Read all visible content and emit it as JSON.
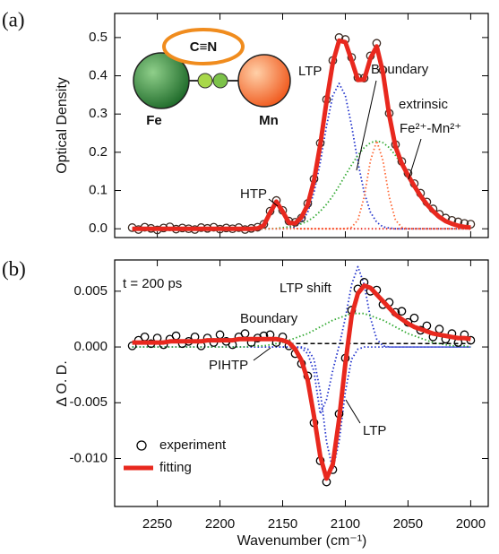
{
  "chart_data": [
    {
      "type": "line",
      "panel_label": "(a)",
      "ylabel": "Optical Density",
      "inset": {
        "bridge": "C≡N",
        "left": "Fe",
        "right": "Mn"
      },
      "xlim": [
        2284,
        1986
      ],
      "xticks": [
        2250,
        2200,
        2150,
        2100,
        2050,
        2000
      ],
      "xtick_labels": false,
      "ylim": [
        -0.023,
        0.563
      ],
      "yticks": [
        {
          "value": 0,
          "label": "0.0"
        },
        {
          "value": 0.1,
          "label": "0.1"
        },
        {
          "value": 0.2,
          "label": "0.2"
        },
        {
          "value": 0.3,
          "label": "0.3"
        },
        {
          "value": 0.4,
          "label": "0.4"
        },
        {
          "value": 0.5,
          "label": "0.5"
        }
      ],
      "x": [
        2270,
        2265,
        2260,
        2255,
        2250,
        2245,
        2240,
        2235,
        2230,
        2225,
        2220,
        2215,
        2210,
        2205,
        2200,
        2195,
        2190,
        2185,
        2180,
        2175,
        2170,
        2165,
        2160,
        2155,
        2150,
        2145,
        2140,
        2135,
        2130,
        2125,
        2120,
        2115,
        2110,
        2105,
        2100,
        2095,
        2090,
        2085,
        2080,
        2075,
        2070,
        2065,
        2060,
        2055,
        2050,
        2045,
        2040,
        2035,
        2030,
        2025,
        2020,
        2015,
        2010,
        2005,
        2000
      ],
      "series": [
        {
          "name": "HTP",
          "style": "dotted",
          "color": "#e8281e",
          "values": [
            0,
            0,
            0,
            0,
            0,
            0,
            0,
            0,
            0,
            0,
            0,
            0,
            0,
            0,
            0,
            0,
            0,
            0,
            0,
            0,
            0.001,
            0.009,
            0.042,
            0.07,
            0.042,
            0.009,
            0.001,
            0,
            0,
            0,
            0,
            0,
            0,
            0,
            0,
            0,
            0,
            0,
            0,
            0,
            0,
            0,
            0,
            0,
            0,
            0,
            0,
            0,
            0,
            0,
            0,
            0,
            0,
            0,
            0
          ]
        },
        {
          "name": "LTP",
          "style": "dotted",
          "color": "#2233cc",
          "values": [
            0,
            0,
            0,
            0,
            0,
            0,
            0,
            0,
            0,
            0,
            0,
            0,
            0,
            0,
            0,
            0,
            0,
            0,
            0,
            0,
            0,
            0,
            0,
            0,
            0,
            0.002,
            0.005,
            0.017,
            0.043,
            0.095,
            0.174,
            0.269,
            0.348,
            0.38,
            0.348,
            0.269,
            0.174,
            0.095,
            0.043,
            0.017,
            0.005,
            0.002,
            0,
            0,
            0,
            0,
            0,
            0,
            0,
            0,
            0,
            0,
            0,
            0,
            0
          ]
        },
        {
          "name": "Boundary",
          "style": "dotted",
          "color": "#33aa33",
          "values": [
            0,
            0,
            0,
            0,
            0,
            0,
            0,
            0,
            0,
            0,
            0,
            0,
            0,
            0,
            0,
            0,
            0,
            0,
            0,
            0,
            0,
            0,
            0,
            0.001,
            0.003,
            0.005,
            0.008,
            0.013,
            0.02,
            0.031,
            0.046,
            0.064,
            0.086,
            0.112,
            0.14,
            0.167,
            0.192,
            0.212,
            0.225,
            0.23,
            0.225,
            0.212,
            0.192,
            0.167,
            0.14,
            0.112,
            0.086,
            0.064,
            0.046,
            0.031,
            0.02,
            0.013,
            0.008,
            0.005,
            0.003
          ]
        },
        {
          "name": "extrinsic",
          "name2": "Fe²⁺-Mn²⁺",
          "style": "dotted",
          "color": "#ff6633",
          "values": [
            0,
            0,
            0,
            0,
            0,
            0,
            0,
            0,
            0,
            0,
            0,
            0,
            0,
            0,
            0,
            0,
            0,
            0,
            0,
            0,
            0,
            0,
            0,
            0,
            0,
            0,
            0,
            0,
            0,
            0,
            0,
            0,
            0,
            0,
            0,
            0.004,
            0.023,
            0.083,
            0.178,
            0.23,
            0.178,
            0.083,
            0.023,
            0.004,
            0,
            0,
            0,
            0,
            0,
            0,
            0,
            0,
            0,
            0,
            0
          ]
        },
        {
          "style": "points",
          "color": "#3a2a22",
          "values": [
            0.003,
            -0.002,
            0.004,
            0.001,
            -0.003,
            0.002,
            0.005,
            -0.001,
            0.002,
            0,
            -0.002,
            0.003,
            0.001,
            0.004,
            -0.001,
            0.002,
            0,
            0.003,
            -0.002,
            0.001,
            0.004,
            0.012,
            0.046,
            0.074,
            0.048,
            0.02,
            0.017,
            0.028,
            0.066,
            0.13,
            0.224,
            0.338,
            0.44,
            0.5,
            0.495,
            0.448,
            0.395,
            0.394,
            0.452,
            0.485,
            0.415,
            0.302,
            0.22,
            0.176,
            0.145,
            0.118,
            0.093,
            0.07,
            0.052,
            0.038,
            0.028,
            0.022,
            0.018,
            0.014,
            0.012
          ]
        },
        {
          "style": "thick",
          "color": "#e8281e",
          "values": [
            0,
            0,
            0,
            0,
            0,
            0,
            0,
            0,
            0,
            0,
            0,
            0,
            0,
            0,
            0,
            0,
            0,
            0,
            0,
            0,
            0.001,
            0.009,
            0.042,
            0.071,
            0.045,
            0.016,
            0.014,
            0.03,
            0.063,
            0.126,
            0.22,
            0.333,
            0.434,
            0.492,
            0.488,
            0.44,
            0.389,
            0.39,
            0.446,
            0.477,
            0.408,
            0.297,
            0.215,
            0.171,
            0.14,
            0.112,
            0.086,
            0.064,
            0.046,
            0.031,
            0.02,
            0.013,
            0.008,
            0.005,
            0.003
          ]
        }
      ]
    },
    {
      "type": "line",
      "panel_label": "(b)",
      "ylabel": "Δ O. D.",
      "xlabel": "Wavenumber (cm⁻¹)",
      "annotation": "t = 200 ps",
      "legend": "lower left",
      "xlim": [
        2284,
        1986
      ],
      "xticks": [
        2250,
        2200,
        2150,
        2100,
        2050,
        2000
      ],
      "ylim": [
        -0.0143,
        0.0078
      ],
      "yticks": [
        {
          "value": 0.005,
          "label": "0.005"
        },
        {
          "value": 0,
          "label": "0.000"
        },
        {
          "value": -0.005,
          "label": "-0.005"
        },
        {
          "value": -0.01,
          "label": "-0.010"
        }
      ],
      "x": [
        2270,
        2265,
        2260,
        2255,
        2250,
        2245,
        2240,
        2235,
        2230,
        2225,
        2220,
        2215,
        2210,
        2205,
        2200,
        2195,
        2190,
        2185,
        2180,
        2175,
        2170,
        2165,
        2160,
        2155,
        2150,
        2145,
        2140,
        2135,
        2130,
        2125,
        2120,
        2115,
        2110,
        2105,
        2100,
        2095,
        2090,
        2085,
        2080,
        2075,
        2070,
        2065,
        2060,
        2055,
        2050,
        2045,
        2040,
        2035,
        2030,
        2025,
        2020,
        2015,
        2010,
        2005,
        2000
      ],
      "series": [
        {
          "name": "LTP shift",
          "style": "dotted",
          "color": "#2233cc",
          "values": [
            0,
            0,
            0,
            0,
            0,
            0,
            0,
            0,
            0,
            0,
            0,
            0,
            0,
            0,
            0,
            0,
            0,
            0,
            0,
            0,
            0,
            0,
            0,
            0,
            0,
            0,
            0,
            -0.0001,
            -0.0006,
            -0.0022,
            -0.006,
            -0.0047,
            -0.0021,
            0.0001,
            0.0026,
            0.0056,
            0.0072,
            0.0056,
            0.0026,
            0.0007,
            0.0001,
            0,
            0,
            0,
            0,
            0,
            0,
            0,
            0,
            0,
            0,
            0,
            0,
            0,
            0
          ]
        },
        {
          "name": "LTP",
          "style": "dotted",
          "color": "#2233cc",
          "values": [
            0,
            0,
            0,
            0,
            0,
            0,
            0,
            0,
            0,
            0,
            0,
            0,
            0,
            0,
            0,
            0,
            0,
            0,
            0,
            0,
            0,
            0,
            0,
            0,
            0,
            0,
            0,
            0,
            -0.0002,
            -0.0011,
            -0.004,
            -0.0085,
            -0.011,
            -0.0085,
            -0.004,
            -0.0011,
            -0.0002,
            0,
            0,
            0,
            0,
            0,
            0,
            0,
            0,
            0,
            0,
            0,
            0,
            0,
            0,
            0,
            0,
            0,
            0
          ]
        },
        {
          "name": "Boundary",
          "style": "dotted",
          "color": "#33aa33",
          "values": [
            0,
            0,
            0,
            0,
            0,
            0,
            0,
            0,
            0,
            0,
            0,
            0,
            0,
            0,
            0,
            0,
            0,
            0,
            0,
            0.0001,
            0.0001,
            0.0001,
            0.0002,
            0.0003,
            0.0004,
            0.0006,
            0.0008,
            0.001,
            0.0012,
            0.0015,
            0.0018,
            0.0021,
            0.0024,
            0.0026,
            0.0028,
            0.003,
            0.003,
            0.003,
            0.0028,
            0.0026,
            0.0024,
            0.0021,
            0.0018,
            0.0015,
            0.0012,
            0.001,
            0.0008,
            0.0006,
            0.0004,
            0.0003,
            0.0002,
            0.0001,
            0.0001,
            0.0001,
            0
          ]
        },
        {
          "name": "PIHTP",
          "style": "dashed",
          "color": "#000000",
          "x": [
            2145,
            2000
          ],
          "values": [
            0.0003,
            0.0003
          ]
        },
        {
          "name": "experiment",
          "legend": true,
          "style": "points",
          "color": "#000000",
          "values": [
            0.0001,
            0.0006,
            0.0009,
            0.0003,
            0.0008,
            0.0002,
            0.0007,
            0.001,
            0.0003,
            0.0005,
            0.0009,
            0.0001,
            0.0008,
            0.0004,
            0.0011,
            0.0005,
            0.0002,
            0.0009,
            0.0012,
            0.0004,
            0.0008,
            0.001,
            0.0011,
            0.0004,
            0.0009,
            0.0001,
            -0.0006,
            -0.0015,
            -0.0026,
            -0.0068,
            -0.0102,
            -0.0121,
            -0.011,
            -0.006,
            -0.001,
            0.0033,
            0.0052,
            0.0058,
            0.005,
            0.0051,
            0.0038,
            0.004,
            0.0031,
            0.0032,
            0.0022,
            0.0026,
            0.0015,
            0.0019,
            0.0009,
            0.0016,
            0.0007,
            0.0012,
            0.0004,
            0.0011,
            0.0006
          ]
        },
        {
          "name": "fitting",
          "legend": true,
          "style": "thick",
          "color": "#e8281e",
          "values": [
            0.0004,
            0.0004,
            0.0004,
            0.0004,
            0.0004,
            0.0004,
            0.0005,
            0.0005,
            0.0005,
            0.0005,
            0.0005,
            0.0005,
            0.0006,
            0.0006,
            0.0006,
            0.0006,
            0.0006,
            0.0007,
            0.0007,
            0.0007,
            0.0007,
            0.0007,
            0.0007,
            0.0007,
            0.0006,
            0.0004,
            -0.0002,
            -0.0012,
            -0.003,
            -0.0062,
            -0.0098,
            -0.0118,
            -0.0105,
            -0.0065,
            -0.0015,
            0.0028,
            0.0048,
            0.0055,
            0.0053,
            0.0047,
            0.0041,
            0.0035,
            0.0029,
            0.0025,
            0.0021,
            0.0018,
            0.0016,
            0.0014,
            0.0012,
            0.0011,
            0.001,
            0.0009,
            0.0008,
            0.0008,
            0.0007
          ]
        }
      ]
    }
  ]
}
